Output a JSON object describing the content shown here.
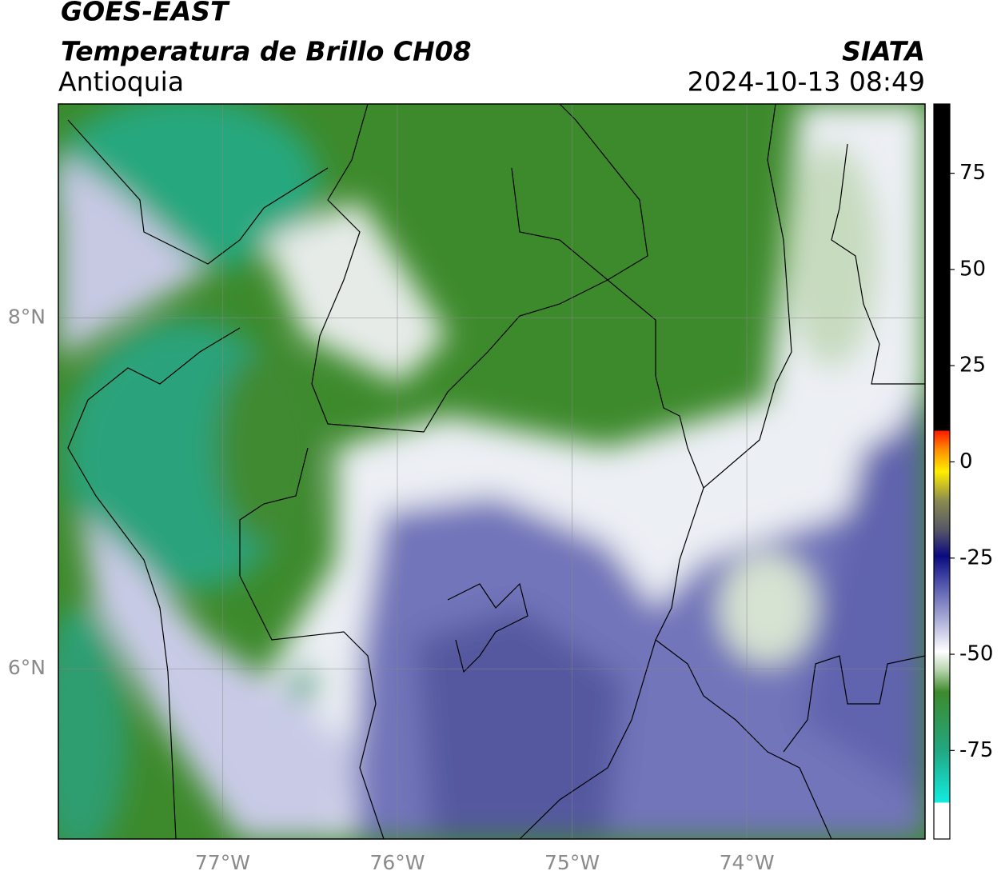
{
  "header": {
    "title": "GOES-EAST",
    "subtitle": "Temperatura de Brillo CH08",
    "region": "Antioquia",
    "source": "SIATA",
    "datetime": "2024-10-13 08:49"
  },
  "map": {
    "xlim": [
      -77.94,
      -72.98
    ],
    "ylim": [
      5.03,
      9.22
    ],
    "xticks": [
      {
        "value": -77,
        "label": "77°W"
      },
      {
        "value": -76,
        "label": "76°W"
      },
      {
        "value": -75,
        "label": "75°W"
      },
      {
        "value": -74,
        "label": "74°W"
      }
    ],
    "yticks": [
      {
        "value": 8,
        "label": "8°N"
      },
      {
        "value": 6,
        "label": "6°N"
      }
    ],
    "grid": true
  },
  "colorbar": {
    "lim": [
      -98,
      93
    ],
    "ticks": [
      75,
      50,
      25,
      0,
      -25,
      -50,
      -75
    ]
  }
}
